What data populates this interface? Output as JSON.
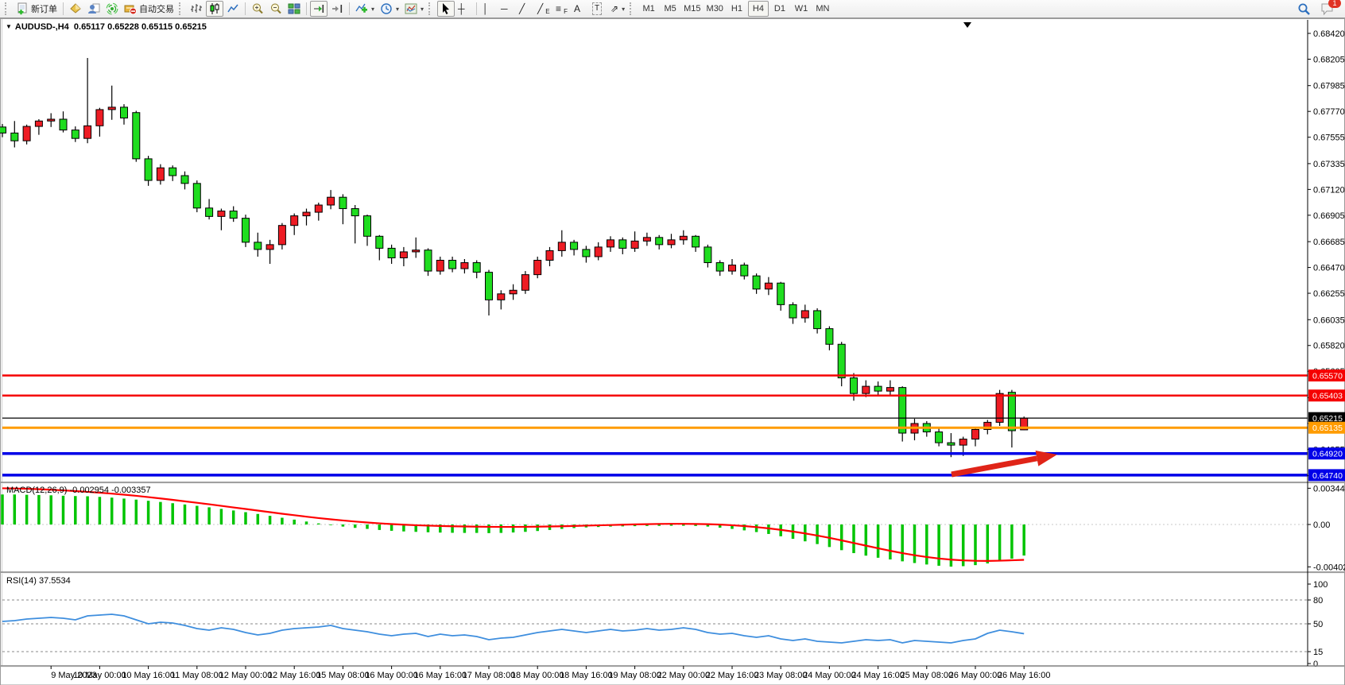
{
  "toolbar": {
    "new_order_label": "新订单",
    "auto_trading_label": "自动交易",
    "badge_count": "1",
    "timeframes": [
      "M1",
      "M5",
      "M15",
      "M30",
      "H1",
      "H4",
      "D1",
      "W1",
      "MN"
    ],
    "active_timeframe": "H4",
    "glyphs": {
      "dropdown": "▾",
      "vline": "│",
      "hline": "─",
      "trendline": "╱",
      "channel": "╱",
      "channel_sub": "E",
      "fibo": "≡",
      "fibo_sub": "F",
      "text_tool": "A",
      "label_tool": "T",
      "arrows_tool": "⇗",
      "crosshair": "┼"
    }
  },
  "overlays": {
    "title": {
      "dropdown": "▼",
      "symbol": "AUDUSD-,H4",
      "open": "0.65117",
      "high": "0.65228",
      "low": "0.65115",
      "close": "0.65215"
    },
    "macd_name": "MACD(12,26,9)",
    "macd_values": "-0.002954 -0.003357",
    "rsi_name": "RSI(14)",
    "rsi_value": "37.5534"
  },
  "chart_data": {
    "type": "candlestick",
    "symbol": "AUDUSD-",
    "period": "H4",
    "title": "AUDUSD-,H4 0.65117 0.65228 0.65115 0.65215",
    "up_color": "#ee1c24",
    "down_color": "#1fdd1f",
    "wick_color": "#000000",
    "ylim_visible": [
      0.6468,
      0.6853
    ],
    "price_axis_ticks": [
      "0.68420",
      "0.68205",
      "0.67985",
      "0.67770",
      "0.67555",
      "0.67335",
      "0.67120",
      "0.66905",
      "0.66685",
      "0.66470",
      "0.66255",
      "0.66035",
      "0.65820",
      "0.65605",
      "0.65385",
      "0.65170",
      "0.64955",
      "0.64735"
    ],
    "x_labels": [
      "9 May 2023",
      "10 May 00:00",
      "10 May 16:00",
      "11 May 08:00",
      "12 May 00:00",
      "12 May 16:00",
      "15 May 08:00",
      "16 May 00:00",
      "16 May 16:00",
      "17 May 08:00",
      "18 May 00:00",
      "18 May 16:00",
      "19 May 08:00",
      "22 May 00:00",
      "22 May 16:00",
      "23 May 08:00",
      "24 May 00:00",
      "24 May 16:00",
      "25 May 08:00",
      "26 May 00:00",
      "26 May 16:00"
    ],
    "x_label_first_bar": 4,
    "x_label_bar_step": 4,
    "ohlc": [
      [
        0.6764,
        0.67665,
        0.67555,
        0.6759
      ],
      [
        0.6759,
        0.6769,
        0.6747,
        0.67525
      ],
      [
        0.67525,
        0.6766,
        0.67495,
        0.67645
      ],
      [
        0.67645,
        0.67705,
        0.67575,
        0.6769
      ],
      [
        0.6769,
        0.67755,
        0.6764,
        0.67705
      ],
      [
        0.67705,
        0.6777,
        0.67595,
        0.67615
      ],
      [
        0.67615,
        0.67645,
        0.67515,
        0.67545
      ],
      [
        0.67545,
        0.68215,
        0.67505,
        0.6765
      ],
      [
        0.6765,
        0.678,
        0.6756,
        0.67785
      ],
      [
        0.67785,
        0.67985,
        0.677,
        0.67805
      ],
      [
        0.67805,
        0.6783,
        0.6766,
        0.67715
      ],
      [
        0.6776,
        0.67775,
        0.6735,
        0.67375
      ],
      [
        0.67375,
        0.674,
        0.6715,
        0.67195
      ],
      [
        0.67195,
        0.6733,
        0.6716,
        0.673
      ],
      [
        0.673,
        0.6732,
        0.6719,
        0.67235
      ],
      [
        0.67235,
        0.6727,
        0.6712,
        0.6717
      ],
      [
        0.6717,
        0.67195,
        0.6693,
        0.66965
      ],
      [
        0.66965,
        0.6704,
        0.6687,
        0.66895
      ],
      [
        0.66895,
        0.6696,
        0.6678,
        0.6694
      ],
      [
        0.6694,
        0.6698,
        0.6685,
        0.6688
      ],
      [
        0.6688,
        0.6691,
        0.6664,
        0.6668
      ],
      [
        0.6668,
        0.6676,
        0.6656,
        0.6662
      ],
      [
        0.6662,
        0.667,
        0.665,
        0.6666
      ],
      [
        0.6666,
        0.6684,
        0.6662,
        0.6682
      ],
      [
        0.6682,
        0.6692,
        0.6674,
        0.669
      ],
      [
        0.669,
        0.6696,
        0.6682,
        0.6693
      ],
      [
        0.6693,
        0.6701,
        0.6686,
        0.6699
      ],
      [
        0.6699,
        0.67115,
        0.66955,
        0.67055
      ],
      [
        0.67055,
        0.6708,
        0.6683,
        0.6696
      ],
      [
        0.6696,
        0.6699,
        0.6667,
        0.669
      ],
      [
        0.669,
        0.6691,
        0.6665,
        0.6673
      ],
      [
        0.6673,
        0.6674,
        0.6653,
        0.6663
      ],
      [
        0.6663,
        0.6666,
        0.665,
        0.6655
      ],
      [
        0.6655,
        0.6664,
        0.6648,
        0.666
      ],
      [
        0.666,
        0.6672,
        0.6655,
        0.66615
      ],
      [
        0.66615,
        0.6663,
        0.664,
        0.6644
      ],
      [
        0.6644,
        0.6656,
        0.6641,
        0.6653
      ],
      [
        0.6653,
        0.6656,
        0.6643,
        0.6646
      ],
      [
        0.6646,
        0.6654,
        0.6642,
        0.6651
      ],
      [
        0.6651,
        0.6653,
        0.6638,
        0.6643
      ],
      [
        0.6643,
        0.6645,
        0.6607,
        0.662
      ],
      [
        0.662,
        0.6628,
        0.6612,
        0.6625
      ],
      [
        0.6625,
        0.6633,
        0.662,
        0.6628
      ],
      [
        0.6628,
        0.6644,
        0.6625,
        0.6641
      ],
      [
        0.6641,
        0.6656,
        0.6638,
        0.6653
      ],
      [
        0.6653,
        0.6664,
        0.6648,
        0.6661
      ],
      [
        0.6661,
        0.6678,
        0.6656,
        0.6668
      ],
      [
        0.6668,
        0.667,
        0.6657,
        0.6662
      ],
      [
        0.6662,
        0.6665,
        0.6651,
        0.6656
      ],
      [
        0.6656,
        0.6668,
        0.6653,
        0.6664
      ],
      [
        0.6664,
        0.6673,
        0.666,
        0.667
      ],
      [
        0.667,
        0.6672,
        0.6658,
        0.6663
      ],
      [
        0.6663,
        0.6677,
        0.666,
        0.6669
      ],
      [
        0.6669,
        0.6676,
        0.6665,
        0.6672
      ],
      [
        0.6672,
        0.6674,
        0.6662,
        0.6666
      ],
      [
        0.6666,
        0.6675,
        0.6663,
        0.667
      ],
      [
        0.667,
        0.6678,
        0.6666,
        0.6673
      ],
      [
        0.6673,
        0.6674,
        0.666,
        0.6664
      ],
      [
        0.6664,
        0.6666,
        0.6647,
        0.6651
      ],
      [
        0.6651,
        0.6653,
        0.664,
        0.6644
      ],
      [
        0.6644,
        0.6654,
        0.6641,
        0.6649
      ],
      [
        0.6649,
        0.6651,
        0.6637,
        0.664
      ],
      [
        0.664,
        0.6642,
        0.6625,
        0.6629
      ],
      [
        0.6629,
        0.6639,
        0.6624,
        0.6634
      ],
      [
        0.6634,
        0.6635,
        0.6611,
        0.6616
      ],
      [
        0.6616,
        0.6618,
        0.66,
        0.6605
      ],
      [
        0.6605,
        0.6616,
        0.6601,
        0.6611
      ],
      [
        0.6611,
        0.6613,
        0.6592,
        0.6596
      ],
      [
        0.6596,
        0.6598,
        0.6578,
        0.6583
      ],
      [
        0.6583,
        0.6585,
        0.6548,
        0.6555
      ],
      [
        0.6555,
        0.6559,
        0.6536,
        0.6542
      ],
      [
        0.6542,
        0.6553,
        0.6539,
        0.6548
      ],
      [
        0.6548,
        0.6552,
        0.654,
        0.6544
      ],
      [
        0.6544,
        0.6553,
        0.6541,
        0.6547
      ],
      [
        0.6547,
        0.6548,
        0.6502,
        0.6509
      ],
      [
        0.6509,
        0.6521,
        0.6503,
        0.6517
      ],
      [
        0.6517,
        0.6519,
        0.6506,
        0.651
      ],
      [
        0.651,
        0.6513,
        0.6498,
        0.6501
      ],
      [
        0.6501,
        0.6509,
        0.6489,
        0.6499
      ],
      [
        0.6499,
        0.6506,
        0.649,
        0.6504
      ],
      [
        0.6504,
        0.6513,
        0.6498,
        0.6512
      ],
      [
        0.6512,
        0.652,
        0.6508,
        0.6518
      ],
      [
        0.6518,
        0.6545,
        0.6515,
        0.6542
      ],
      [
        0.6543,
        0.6545,
        0.6497,
        0.6511
      ],
      [
        0.65117,
        0.65228,
        0.65115,
        0.65215
      ]
    ],
    "hlines": [
      {
        "price": 0.6557,
        "label": "0.65570",
        "color": "#f50000",
        "width": 2.5
      },
      {
        "price": 0.65403,
        "label": "0.65403",
        "color": "#f50000",
        "width": 2.5
      },
      {
        "price": 0.65215,
        "label": "0.65215",
        "color": "#000000",
        "width": 1.2
      },
      {
        "price": 0.65135,
        "label": "0.65135",
        "color": "#ff9c00",
        "width": 3
      },
      {
        "price": 0.6492,
        "label": "0.64920",
        "color": "#0000e8",
        "width": 3.5
      },
      {
        "price": 0.6474,
        "label": "0.64740",
        "color": "#0000e8",
        "width": 3.5
      }
    ],
    "arrow": {
      "tail": [
        1197,
        597
      ],
      "tip": [
        1330,
        572
      ],
      "color": "#e02418"
    },
    "shift_marker_x": 1217,
    "macd": {
      "name": "MACD(12,26,9)",
      "main_value": -0.002954,
      "signal_value": -0.003357,
      "axis_labels": [
        "0.003442",
        "0.00",
        "-0.004025"
      ],
      "axis_max": 0.003442,
      "axis_min": -0.004025,
      "histogram_color": "#00c400",
      "signal_color": "#ff0000",
      "histogram": [
        0.00285,
        0.00285,
        0.00282,
        0.0028,
        0.00277,
        0.00273,
        0.0027,
        0.00268,
        0.00262,
        0.00255,
        0.00246,
        0.00236,
        0.00225,
        0.00214,
        0.00202,
        0.0019,
        0.00177,
        0.00163,
        0.00148,
        0.00133,
        0.00117,
        0.001,
        0.00082,
        0.00064,
        0.00046,
        0.00028,
        0.0001,
        -6e-05,
        -0.0002,
        -0.00032,
        -0.00042,
        -0.00052,
        -0.0006,
        -0.00066,
        -0.0007,
        -0.00074,
        -0.00077,
        -0.00079,
        -0.0008,
        -0.0008,
        -0.00082,
        -0.0008,
        -0.00076,
        -0.0007,
        -0.00062,
        -0.00052,
        -0.00042,
        -0.00034,
        -0.00028,
        -0.00024,
        -0.0002,
        -0.00018,
        -0.00016,
        -0.00014,
        -0.00013,
        -0.00012,
        -0.00012,
        -0.00014,
        -0.0002,
        -0.0003,
        -0.00042,
        -0.00056,
        -0.00072,
        -0.0009,
        -0.00112,
        -0.00136,
        -0.0016,
        -0.00186,
        -0.00214,
        -0.00244,
        -0.00272,
        -0.00296,
        -0.00316,
        -0.00332,
        -0.0035,
        -0.00366,
        -0.0038,
        -0.00392,
        -0.004,
        -0.00396,
        -0.00386,
        -0.0037,
        -0.0035,
        -0.00325,
        -0.00295
      ],
      "signal": [
        0.00344,
        0.00342,
        0.00339,
        0.00335,
        0.0033,
        0.00324,
        0.00317,
        0.0031,
        0.00302,
        0.00293,
        0.00283,
        0.00272,
        0.0026,
        0.00247,
        0.00234,
        0.0022,
        0.00206,
        0.00192,
        0.00177,
        0.00162,
        0.00147,
        0.00132,
        0.00117,
        0.00102,
        0.00088,
        0.00074,
        0.00061,
        0.00049,
        0.00038,
        0.00028,
        0.00019,
        0.00011,
        4e-05,
        -2e-05,
        -7e-05,
        -0.00011,
        -0.00014,
        -0.00017,
        -0.00019,
        -0.00021,
        -0.00022,
        -0.00023,
        -0.00023,
        -0.00022,
        -0.00021,
        -0.00019,
        -0.00017,
        -0.00014,
        -0.00011,
        -8e-05,
        -5e-05,
        -2e-05,
        1e-05,
        3e-05,
        5e-05,
        6e-05,
        6e-05,
        5e-05,
        3e-05,
        -1e-05,
        -7e-05,
        -0.00015,
        -0.00025,
        -0.00037,
        -0.00051,
        -0.00067,
        -0.00085,
        -0.00105,
        -0.00127,
        -0.00151,
        -0.00176,
        -0.00201,
        -0.00226,
        -0.0025,
        -0.00272,
        -0.00292,
        -0.00309,
        -0.00323,
        -0.00334,
        -0.00341,
        -0.00345,
        -0.00346,
        -0.00344,
        -0.0034,
        -0.00336
      ]
    },
    "rsi": {
      "name": "RSI(14)",
      "value": 37.5534,
      "line_color": "#3e8ede",
      "levels": [
        80,
        50,
        15
      ],
      "axis_labels": [
        "100",
        "80",
        "50",
        "15",
        "0"
      ],
      "series": [
        53,
        54,
        56,
        57,
        58,
        57,
        55,
        60,
        61,
        62,
        60,
        55,
        50,
        52,
        51,
        48,
        44,
        42,
        45,
        43,
        39,
        36,
        38,
        42,
        44,
        45,
        46,
        48,
        44,
        42,
        40,
        37,
        35,
        37,
        38,
        34,
        37,
        35,
        36,
        34,
        30,
        32,
        33,
        36,
        39,
        41,
        43,
        41,
        39,
        41,
        43,
        41,
        42,
        44,
        42,
        43,
        45,
        43,
        39,
        37,
        38,
        35,
        33,
        35,
        31,
        29,
        31,
        28,
        27,
        26,
        28,
        30,
        29,
        30,
        26,
        29,
        28,
        27,
        26,
        29,
        31,
        38,
        42,
        40,
        37.55
      ]
    }
  }
}
